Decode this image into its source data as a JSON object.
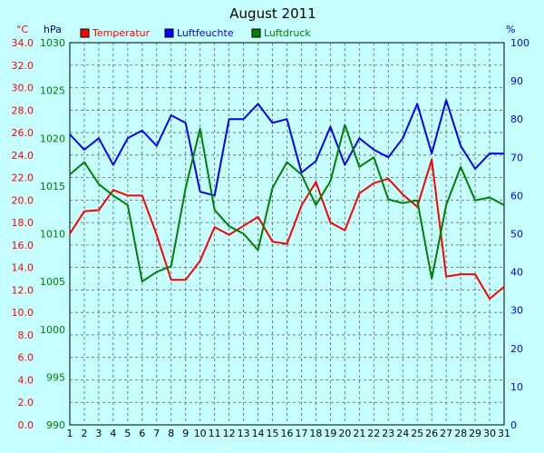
{
  "chart_data": {
    "type": "line",
    "title": "August 2011",
    "x": [
      1,
      2,
      3,
      4,
      5,
      6,
      7,
      8,
      9,
      10,
      11,
      12,
      13,
      14,
      15,
      16,
      17,
      18,
      19,
      20,
      21,
      22,
      23,
      24,
      25,
      26,
      27,
      28,
      29,
      30,
      31
    ],
    "axes": {
      "left_temp": {
        "unit": "°C",
        "ylim": [
          0.0,
          34.0
        ],
        "ticks": [
          "0.0",
          "2.0",
          "4.0",
          "6.0",
          "8.0",
          "10.0",
          "12.0",
          "14.0",
          "16.0",
          "18.0",
          "20.0",
          "22.0",
          "24.0",
          "26.0",
          "28.0",
          "30.0",
          "32.0",
          "34.0"
        ]
      },
      "left_pressure": {
        "unit": "hPa",
        "ylim": [
          990,
          1030
        ],
        "ticks": [
          "990",
          "995",
          "1000",
          "1005",
          "1010",
          "1015",
          "1020",
          "1025",
          "1030"
        ]
      },
      "right_humidity": {
        "unit": "%",
        "ylim": [
          0,
          100
        ],
        "ticks": [
          "0",
          "10",
          "20",
          "30",
          "40",
          "50",
          "60",
          "70",
          "80",
          "90",
          "100"
        ]
      }
    },
    "grid": true,
    "legend_placement": "top",
    "series": [
      {
        "name": "Temperatur",
        "axis": "left_temp",
        "color": "#ff0000",
        "values": [
          17.0,
          19.0,
          19.1,
          20.9,
          20.4,
          20.4,
          16.9,
          12.9,
          12.9,
          14.6,
          17.6,
          16.9,
          17.7,
          18.5,
          16.3,
          16.1,
          19.5,
          21.6,
          18.0,
          17.3,
          20.6,
          21.5,
          21.9,
          20.5,
          19.4,
          23.6,
          13.2,
          13.4,
          13.4,
          11.2,
          12.3
        ]
      },
      {
        "name": "Luftfeuchte",
        "axis": "right_humidity",
        "color": "#0000ff",
        "values": [
          76,
          72,
          75,
          68,
          75,
          77,
          73,
          81,
          79,
          61,
          60,
          80,
          80,
          84,
          79,
          80,
          66,
          69,
          78,
          68,
          75,
          72,
          70,
          75,
          84,
          71,
          85,
          73,
          67,
          71,
          71
        ]
      },
      {
        "name": "Luftdruck",
        "axis": "left_pressure",
        "color": "#008000",
        "values": [
          1016.2,
          1017.5,
          1015.2,
          1014.0,
          1013.0,
          1005.0,
          1006.0,
          1006.6,
          1014.8,
          1021.0,
          1012.5,
          1010.8,
          1010.0,
          1008.3,
          1014.8,
          1017.5,
          1016.2,
          1013.0,
          1015.5,
          1021.4,
          1017.0,
          1018.0,
          1013.6,
          1013.2,
          1013.5,
          1005.3,
          1013.0,
          1017.0,
          1013.5,
          1013.8,
          1013.0
        ]
      }
    ]
  }
}
